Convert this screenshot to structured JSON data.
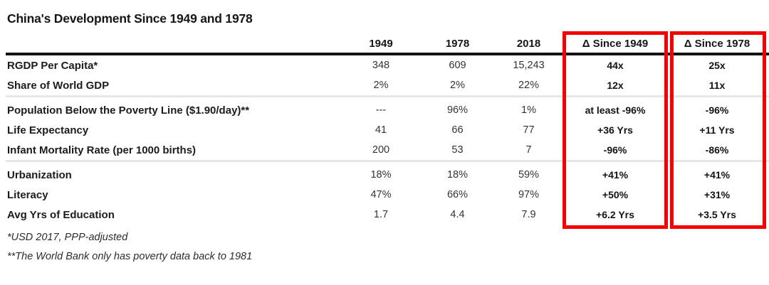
{
  "chart_data": {
    "type": "table",
    "title": "China's Development Since 1949 and 1978",
    "columns": [
      "1949",
      "1978",
      "2018",
      "Δ Since 1949",
      "Δ Since 1978"
    ],
    "rows": [
      {
        "label": "RGDP Per Capita*",
        "values": [
          "348",
          "609",
          "15,243"
        ],
        "deltas": [
          "44x",
          "25x"
        ]
      },
      {
        "label": "Share of World GDP",
        "values": [
          "2%",
          "2%",
          "22%"
        ],
        "deltas": [
          "12x",
          "11x"
        ]
      },
      {
        "label": "Population Below the Poverty Line ($1.90/day)**",
        "values": [
          "---",
          "96%",
          "1%"
        ],
        "deltas": [
          "at least -96%",
          "-96%"
        ]
      },
      {
        "label": "Life Expectancy",
        "values": [
          "41",
          "66",
          "77"
        ],
        "deltas": [
          "+36 Yrs",
          "+11 Yrs"
        ]
      },
      {
        "label": "Infant Mortality Rate (per 1000 births)",
        "values": [
          "200",
          "53",
          "7"
        ],
        "deltas": [
          "-96%",
          "-86%"
        ]
      },
      {
        "label": "Urbanization",
        "values": [
          "18%",
          "18%",
          "59%"
        ],
        "deltas": [
          "+41%",
          "+41%"
        ]
      },
      {
        "label": "Literacy",
        "values": [
          "47%",
          "66%",
          "97%"
        ],
        "deltas": [
          "+50%",
          "+31%"
        ]
      },
      {
        "label": "Avg Yrs of Education",
        "values": [
          "1.7",
          "4.4",
          "7.9"
        ],
        "deltas": [
          "+6.2 Yrs",
          "+3.5 Yrs"
        ]
      }
    ],
    "row_groups": "rows grouped 2 / 3 / 3 with light gray separators",
    "highlighted_columns": [
      "Δ Since 1949",
      "Δ Since 1978"
    ],
    "footnotes": [
      "*USD 2017, PPP-adjusted",
      "**The World Bank only has poverty data back to 1981"
    ],
    "layout": {
      "legend": "none",
      "grid": "off",
      "highlight": "two red outlined boxes around delta columns spanning header to last data row"
    }
  },
  "colors": {
    "highlight_red": "#f40000",
    "header_rule_black": "#131313",
    "group_separator_gray": "#e7e7e7",
    "background": "#ffffff"
  }
}
